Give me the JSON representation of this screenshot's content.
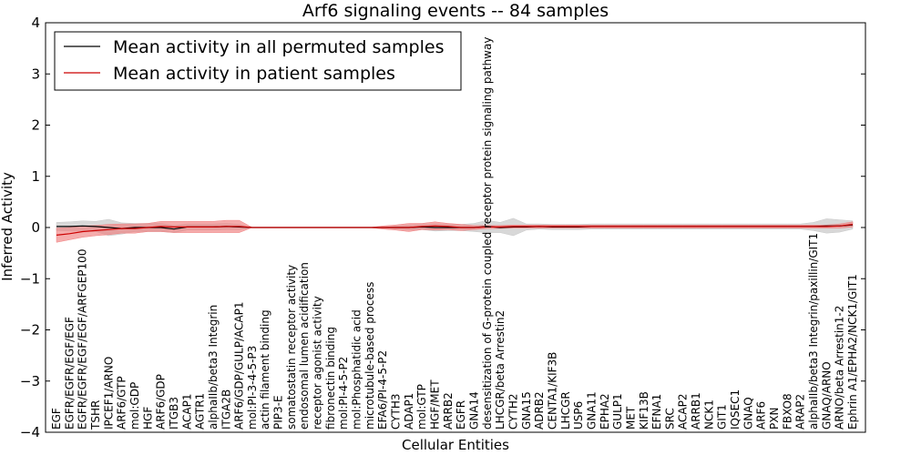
{
  "chart_data": {
    "type": "line",
    "title": "Arf6 signaling events -- 84 samples",
    "xlabel": "Cellular Entities",
    "ylabel": "Inferred Activity",
    "ylim": [
      -4,
      4
    ],
    "yticks": [
      "−4",
      "−3",
      "−2",
      "−1",
      "0",
      "1",
      "2",
      "3",
      "4"
    ],
    "grid": false,
    "legend": {
      "position": "top-left",
      "entries": [
        "Mean activity in all permuted samples",
        "Mean activity in patient samples"
      ]
    },
    "colors": {
      "permuted_line": "#000000",
      "permuted_band": "#c8c8c8",
      "patient_line": "#cc0000",
      "patient_band": "#f08080"
    },
    "categories": [
      "EGF",
      "EGFR/EGFR/EGF/EGF",
      "EGFR/EGFR/EGF/EGF/ARFGEP100",
      "TSHR",
      "IPCEF1/ARNO",
      "ARF6/GTP",
      "mol:GDP",
      "HGF",
      "ARF6/GDP",
      "ITGB3",
      "ACAP1",
      "AGTR1",
      "alphaIIb/beta3 Integrin",
      "ITGA2B",
      "ARF6/GDP/GULP/ACAP1",
      "mol:PI-3-4-5-P3",
      "actin filament binding",
      "PIP3-E",
      "somatostatin receptor activity",
      "endosomal lumen acidification",
      "receptor agonist activity",
      "fibronectin binding",
      "mol:PI-4-5-P2",
      "mol:Phosphatidic acid",
      "microtubule-based process",
      "EFA6/PI-4-5-P2",
      "CYTH3",
      "ADAP1",
      "mol:GTP",
      "HGF/MET",
      "ARRB2",
      "EGFR",
      "GNA14",
      "desensitization of G-protein coupled receptor protein signaling pathway",
      "LHCGR/beta Arrestin2",
      "CYTH2",
      "GNA15",
      "ADRB2",
      "CENTA1/KIF3B",
      "LHCGR",
      "USP6",
      "GNA11",
      "EPHA2",
      "GULP1",
      "MET",
      "KIF13B",
      "EFNA1",
      "SRC",
      "ACAP2",
      "ARRB1",
      "NCK1",
      "GIT1",
      "IQSEC1",
      "GNAQ",
      "ARF6",
      "PXN",
      "FBXO8",
      "ARAP2",
      "alphaIIb/beta3 Integrin/paxillin/GIT1",
      "GNAQ/ARNO",
      "ARNO/beta Arrestin1-2",
      "Ephrin A1/EPHA2/NCK1/GIT1"
    ],
    "series": [
      {
        "name": "Mean activity in all permuted samples",
        "values": [
          0.02,
          0.02,
          0.03,
          0.02,
          0.0,
          -0.02,
          0.0,
          0.0,
          0.0,
          -0.03,
          0.01,
          0.01,
          0.01,
          0.02,
          0.01,
          0,
          0,
          0,
          0,
          0,
          0,
          0,
          0,
          0,
          0,
          0,
          0,
          0.0,
          0.01,
          0.0,
          0.0,
          0.0,
          0.0,
          0.02,
          0.0,
          0.01,
          0.01,
          0.02,
          0.01,
          0.01,
          0.01,
          0.02,
          0.02,
          0.02,
          0.02,
          0.02,
          0.02,
          0.02,
          0.02,
          0.02,
          0.02,
          0.02,
          0.02,
          0.02,
          0.02,
          0.02,
          0.02,
          0.02,
          0.02,
          0.03,
          0.03,
          0.05
        ],
        "band": [
          0.08,
          0.09,
          0.1,
          0.1,
          0.16,
          0.11,
          0.08,
          0.08,
          0.08,
          0.07,
          0.06,
          0.06,
          0.06,
          0.06,
          0.05,
          0,
          0,
          0,
          0,
          0,
          0,
          0,
          0,
          0.0,
          0.0,
          0.0,
          0.03,
          0.05,
          0.05,
          0.07,
          0.06,
          0.06,
          0.08,
          0.12,
          0.1,
          0.17,
          0.06,
          0.05,
          0.05,
          0.05,
          0.05,
          0.05,
          0.05,
          0.05,
          0.05,
          0.05,
          0.05,
          0.05,
          0.05,
          0.05,
          0.05,
          0.05,
          0.05,
          0.05,
          0.05,
          0.05,
          0.05,
          0.05,
          0.08,
          0.14,
          0.12,
          0.08
        ]
      },
      {
        "name": "Mean activity in patient samples",
        "values": [
          -0.15,
          -0.12,
          -0.08,
          -0.06,
          -0.04,
          -0.02,
          -0.02,
          0.0,
          0.02,
          0.01,
          0.01,
          0.01,
          0.01,
          0.02,
          0.02,
          0,
          0,
          0,
          0,
          0,
          0,
          0,
          0,
          0,
          0,
          0,
          0.0,
          0.0,
          0.02,
          0.03,
          0.02,
          0.0,
          0.0,
          0.01,
          0.01,
          0.02,
          0.02,
          0.02,
          0.02,
          0.02,
          0.02,
          0.02,
          0.02,
          0.02,
          0.02,
          0.02,
          0.02,
          0.02,
          0.02,
          0.02,
          0.02,
          0.02,
          0.02,
          0.02,
          0.02,
          0.02,
          0.02,
          0.02,
          0.02,
          0.02,
          0.03,
          0.06
        ],
        "band": [
          0.14,
          0.12,
          0.11,
          0.1,
          0.1,
          0.09,
          0.09,
          0.08,
          0.1,
          0.11,
          0.11,
          0.11,
          0.11,
          0.12,
          0.12,
          0,
          0,
          0,
          0,
          0,
          0,
          0,
          0,
          0.0,
          0.0,
          0.03,
          0.05,
          0.08,
          0.06,
          0.08,
          0.06,
          0.06,
          0.04,
          0.03,
          0.03,
          0.03,
          0.03,
          0.03,
          0.03,
          0.03,
          0.03,
          0.03,
          0.03,
          0.03,
          0.03,
          0.03,
          0.03,
          0.03,
          0.03,
          0.03,
          0.03,
          0.03,
          0.03,
          0.03,
          0.03,
          0.03,
          0.03,
          0.03,
          0.03,
          0.03,
          0.04,
          0.05
        ]
      }
    ]
  }
}
